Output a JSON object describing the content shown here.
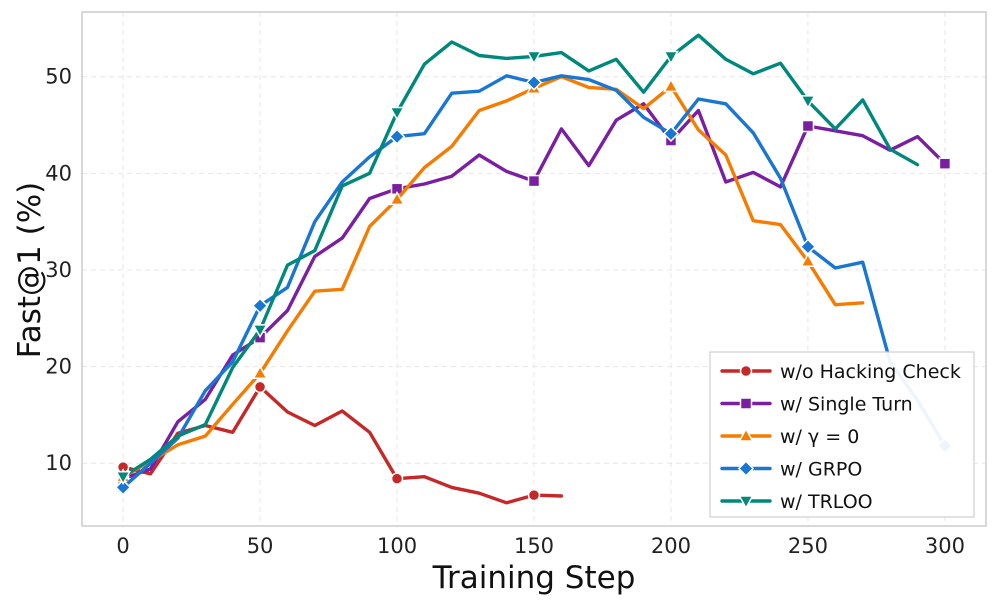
{
  "chart_data": {
    "type": "line",
    "title": "",
    "xlabel": "Training Step",
    "ylabel": "Fast@1 (%)",
    "xlim": [
      -15,
      315
    ],
    "ylim": [
      3.5,
      56.7
    ],
    "xticks": [
      0,
      50,
      100,
      150,
      200,
      250,
      300
    ],
    "yticks": [
      10,
      20,
      30,
      40,
      50
    ],
    "grid": true,
    "legend_position": "bottom-right",
    "series": [
      {
        "name": "w/o Hacking Check",
        "color": "#c62828",
        "marker": "circle",
        "x": [
          0,
          10,
          20,
          30,
          40,
          50,
          60,
          70,
          80,
          90,
          100,
          110,
          120,
          130,
          140,
          150,
          160
        ],
        "y": [
          9.6,
          8.9,
          13.1,
          13.9,
          13.2,
          17.9,
          15.3,
          13.9,
          15.4,
          13.2,
          8.4,
          8.6,
          7.5,
          6.9,
          5.9,
          6.7,
          6.6
        ],
        "marker_x": [
          0,
          50,
          100,
          150
        ]
      },
      {
        "name": "w/ Single Turn",
        "color": "#7b1fa2",
        "marker": "square",
        "x": [
          0,
          10,
          20,
          30,
          40,
          50,
          60,
          70,
          80,
          90,
          100,
          110,
          120,
          130,
          140,
          150,
          160,
          170,
          180,
          190,
          200,
          210,
          220,
          230,
          240,
          250,
          260,
          270,
          280,
          290,
          300
        ],
        "y": [
          8.4,
          9.4,
          14.3,
          16.6,
          21.2,
          23.0,
          25.8,
          31.4,
          33.3,
          37.4,
          38.4,
          38.9,
          39.7,
          41.9,
          40.2,
          39.2,
          44.6,
          40.8,
          45.5,
          47.2,
          43.4,
          46.5,
          39.1,
          40.1,
          38.6,
          44.9,
          44.4,
          43.9,
          42.4,
          43.8,
          41.0
        ],
        "marker_x": [
          0,
          50,
          100,
          150,
          200,
          250,
          300
        ]
      },
      {
        "name": "w/ γ = 0",
        "color": "#f57c00",
        "marker": "triangle-up",
        "x": [
          0,
          10,
          20,
          30,
          40,
          50,
          60,
          70,
          80,
          90,
          100,
          110,
          120,
          130,
          140,
          150,
          160,
          170,
          180,
          190,
          200,
          210,
          220,
          230,
          240,
          250,
          260,
          270
        ],
        "y": [
          8.6,
          10.2,
          11.9,
          12.8,
          16.1,
          19.3,
          23.7,
          27.8,
          28.0,
          34.5,
          37.3,
          40.6,
          42.8,
          46.5,
          47.5,
          48.8,
          50.0,
          48.9,
          48.7,
          46.7,
          49.0,
          44.5,
          41.9,
          35.1,
          34.7,
          30.9,
          26.4,
          26.6
        ],
        "marker_x": [
          0,
          50,
          100,
          150,
          200,
          250
        ]
      },
      {
        "name": "w/ GRPO",
        "color": "#1976d2",
        "marker": "diamond",
        "x": [
          0,
          10,
          20,
          30,
          40,
          50,
          60,
          70,
          80,
          90,
          100,
          110,
          120,
          130,
          140,
          150,
          160,
          170,
          180,
          190,
          200,
          210,
          220,
          230,
          240,
          250,
          260,
          270,
          280,
          290,
          300
        ],
        "y": [
          7.5,
          10.0,
          12.6,
          17.5,
          20.5,
          26.3,
          28.2,
          35.0,
          39.1,
          41.7,
          43.8,
          44.1,
          48.3,
          48.5,
          50.1,
          49.4,
          50.1,
          49.7,
          48.6,
          45.8,
          44.1,
          47.7,
          47.2,
          44.2,
          39.5,
          32.4,
          30.2,
          30.8,
          20.5,
          16.5,
          11.8
        ],
        "marker_x": [
          0,
          50,
          100,
          150,
          200,
          250,
          300
        ]
      },
      {
        "name": "w/ TRLOO",
        "color": "#00897b",
        "marker": "triangle-down",
        "x": [
          0,
          10,
          20,
          30,
          40,
          50,
          60,
          70,
          80,
          90,
          100,
          110,
          120,
          130,
          140,
          150,
          160,
          170,
          180,
          190,
          200,
          210,
          220,
          230,
          240,
          250,
          260,
          270,
          280,
          290
        ],
        "y": [
          8.6,
          10.4,
          12.8,
          14.0,
          19.9,
          23.8,
          30.5,
          32.0,
          38.7,
          40.0,
          46.3,
          51.3,
          53.6,
          52.2,
          51.9,
          52.1,
          52.5,
          50.6,
          51.8,
          48.4,
          52.1,
          54.3,
          51.8,
          50.3,
          51.4,
          47.5,
          44.6,
          47.6,
          42.5,
          40.9
        ],
        "marker_x": [
          0,
          50,
          100,
          150,
          200,
          250
        ]
      }
    ]
  }
}
